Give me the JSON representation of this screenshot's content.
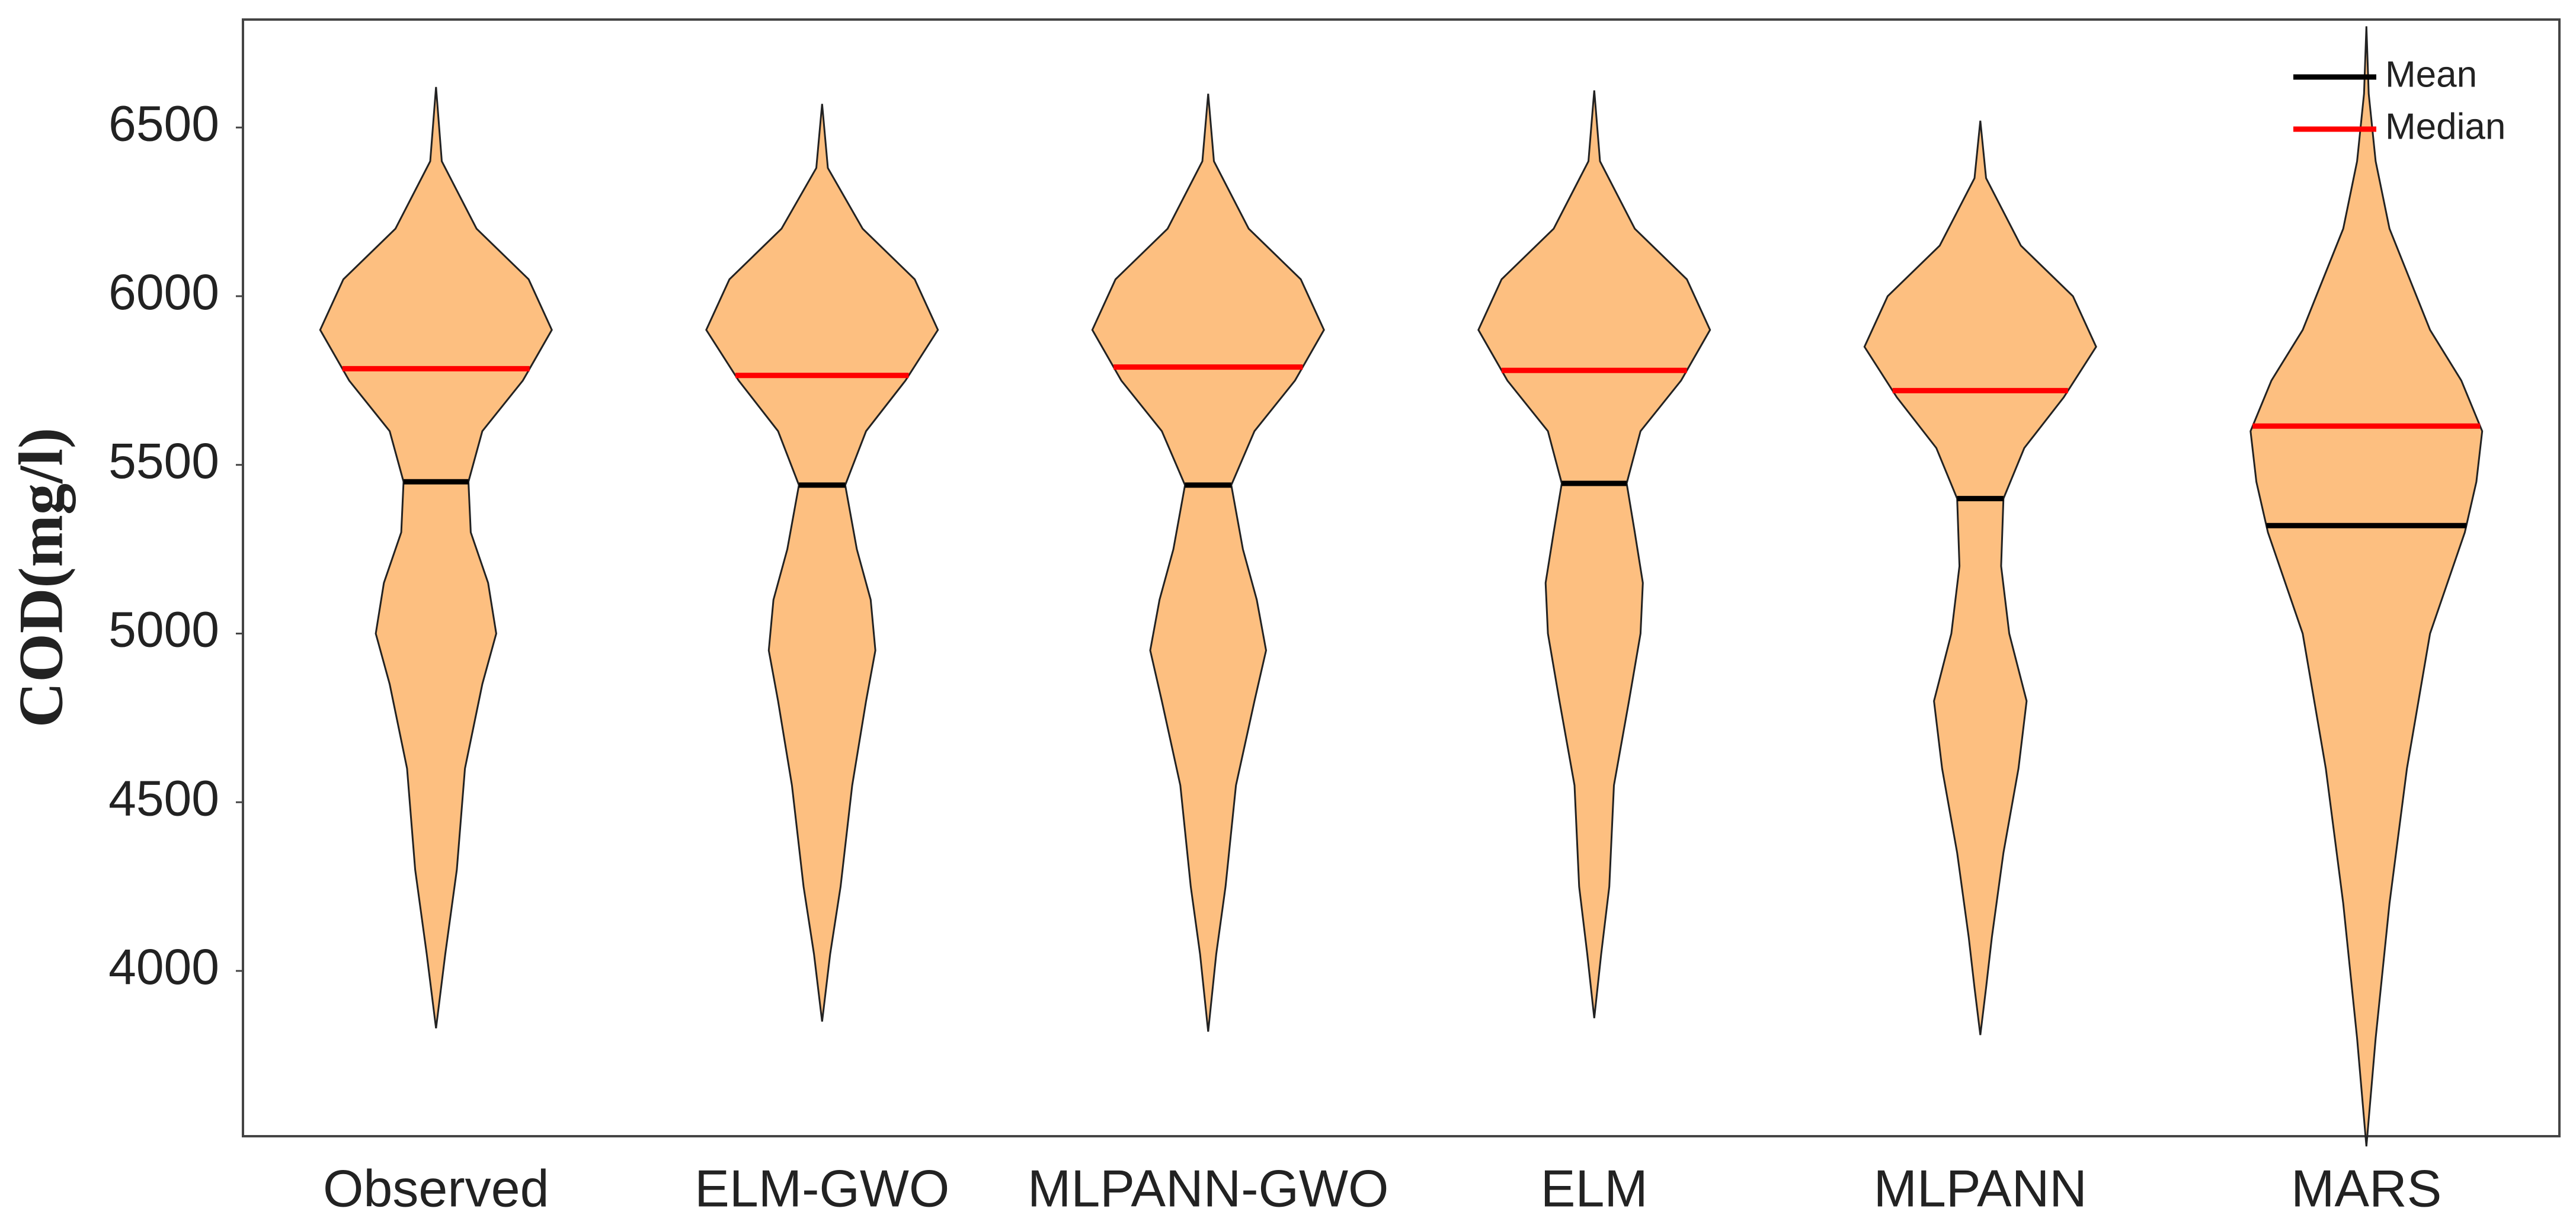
{
  "chart_data": {
    "type": "violin",
    "y_label": "COD(mg/l)",
    "categories": [
      "Observed",
      "ELM-GWO",
      "MLPANN-GWO",
      "ELM",
      "MLPANN",
      "MARS"
    ],
    "fill": "#fdbf80",
    "legend": [
      {
        "name": "Mean",
        "color": "#000000"
      },
      {
        "name": "Median",
        "color": "#ff0000"
      }
    ],
    "legend_position": "upper right",
    "ylim": [
      3510,
      6820
    ],
    "yticks": [
      4000,
      4500,
      5000,
      5500,
      6000,
      6500
    ],
    "violins": [
      {
        "mean": 5450,
        "median": 5785,
        "density": [
          {
            "y": 6620,
            "w": 0
          },
          {
            "y": 6400,
            "w": 0.05
          },
          {
            "y": 6200,
            "w": 0.35
          },
          {
            "y": 6050,
            "w": 0.8
          },
          {
            "y": 5900,
            "w": 1.0
          },
          {
            "y": 5750,
            "w": 0.75
          },
          {
            "y": 5600,
            "w": 0.4
          },
          {
            "y": 5450,
            "w": 0.28
          },
          {
            "y": 5300,
            "w": 0.3
          },
          {
            "y": 5150,
            "w": 0.45
          },
          {
            "y": 5000,
            "w": 0.52
          },
          {
            "y": 4850,
            "w": 0.4
          },
          {
            "y": 4600,
            "w": 0.25
          },
          {
            "y": 4300,
            "w": 0.18
          },
          {
            "y": 4050,
            "w": 0.08
          },
          {
            "y": 3830,
            "w": 0
          }
        ]
      },
      {
        "mean": 5440,
        "median": 5765,
        "density": [
          {
            "y": 6570,
            "w": 0
          },
          {
            "y": 6380,
            "w": 0.05
          },
          {
            "y": 6200,
            "w": 0.35
          },
          {
            "y": 6050,
            "w": 0.8
          },
          {
            "y": 5900,
            "w": 1.0
          },
          {
            "y": 5750,
            "w": 0.72
          },
          {
            "y": 5600,
            "w": 0.38
          },
          {
            "y": 5440,
            "w": 0.2
          },
          {
            "y": 5250,
            "w": 0.3
          },
          {
            "y": 5100,
            "w": 0.42
          },
          {
            "y": 4950,
            "w": 0.46
          },
          {
            "y": 4800,
            "w": 0.38
          },
          {
            "y": 4550,
            "w": 0.26
          },
          {
            "y": 4250,
            "w": 0.16
          },
          {
            "y": 4050,
            "w": 0.07
          },
          {
            "y": 3850,
            "w": 0
          }
        ]
      },
      {
        "mean": 5440,
        "median": 5790,
        "density": [
          {
            "y": 6600,
            "w": 0
          },
          {
            "y": 6400,
            "w": 0.05
          },
          {
            "y": 6200,
            "w": 0.35
          },
          {
            "y": 6050,
            "w": 0.8
          },
          {
            "y": 5900,
            "w": 1.0
          },
          {
            "y": 5750,
            "w": 0.75
          },
          {
            "y": 5600,
            "w": 0.4
          },
          {
            "y": 5440,
            "w": 0.2
          },
          {
            "y": 5250,
            "w": 0.3
          },
          {
            "y": 5100,
            "w": 0.42
          },
          {
            "y": 4950,
            "w": 0.5
          },
          {
            "y": 4800,
            "w": 0.4
          },
          {
            "y": 4550,
            "w": 0.24
          },
          {
            "y": 4250,
            "w": 0.15
          },
          {
            "y": 4050,
            "w": 0.07
          },
          {
            "y": 3820,
            "w": 0
          }
        ]
      },
      {
        "mean": 5445,
        "median": 5780,
        "density": [
          {
            "y": 6610,
            "w": 0
          },
          {
            "y": 6400,
            "w": 0.05
          },
          {
            "y": 6200,
            "w": 0.35
          },
          {
            "y": 6050,
            "w": 0.8
          },
          {
            "y": 5900,
            "w": 1.0
          },
          {
            "y": 5750,
            "w": 0.75
          },
          {
            "y": 5600,
            "w": 0.4
          },
          {
            "y": 5445,
            "w": 0.28
          },
          {
            "y": 5300,
            "w": 0.35
          },
          {
            "y": 5150,
            "w": 0.42
          },
          {
            "y": 5000,
            "w": 0.4
          },
          {
            "y": 4800,
            "w": 0.3
          },
          {
            "y": 4550,
            "w": 0.17
          },
          {
            "y": 4250,
            "w": 0.13
          },
          {
            "y": 4050,
            "w": 0.06
          },
          {
            "y": 3860,
            "w": 0
          }
        ]
      },
      {
        "mean": 5400,
        "median": 5720,
        "density": [
          {
            "y": 6520,
            "w": 0
          },
          {
            "y": 6350,
            "w": 0.05
          },
          {
            "y": 6150,
            "w": 0.35
          },
          {
            "y": 6000,
            "w": 0.8
          },
          {
            "y": 5850,
            "w": 1.0
          },
          {
            "y": 5700,
            "w": 0.72
          },
          {
            "y": 5550,
            "w": 0.38
          },
          {
            "y": 5400,
            "w": 0.2
          },
          {
            "y": 5200,
            "w": 0.18
          },
          {
            "y": 5000,
            "w": 0.25
          },
          {
            "y": 4800,
            "w": 0.4
          },
          {
            "y": 4600,
            "w": 0.33
          },
          {
            "y": 4350,
            "w": 0.2
          },
          {
            "y": 4100,
            "w": 0.1
          },
          {
            "y": 3950,
            "w": 0.05
          },
          {
            "y": 3810,
            "w": 0
          }
        ]
      },
      {
        "mean": 5320,
        "median": 5615,
        "density": [
          {
            "y": 6800,
            "w": 0
          },
          {
            "y": 6600,
            "w": 0.02
          },
          {
            "y": 6400,
            "w": 0.08
          },
          {
            "y": 6200,
            "w": 0.2
          },
          {
            "y": 5900,
            "w": 0.55
          },
          {
            "y": 5750,
            "w": 0.82
          },
          {
            "y": 5600,
            "w": 1.0
          },
          {
            "y": 5450,
            "w": 0.95
          },
          {
            "y": 5300,
            "w": 0.85
          },
          {
            "y": 5000,
            "w": 0.55
          },
          {
            "y": 4600,
            "w": 0.35
          },
          {
            "y": 4200,
            "w": 0.2
          },
          {
            "y": 3800,
            "w": 0.08
          },
          {
            "y": 3480,
            "w": 0
          }
        ]
      }
    ]
  }
}
